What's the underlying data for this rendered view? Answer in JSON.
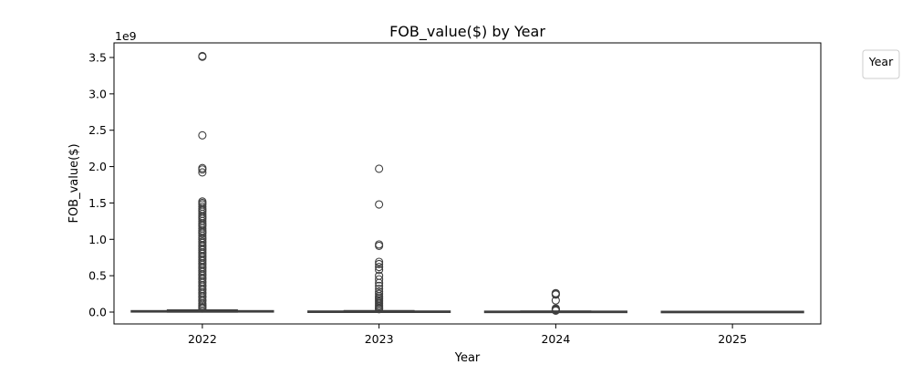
{
  "chart_data": {
    "type": "box",
    "title": "FOB_value($) by Year",
    "xlabel": "Year",
    "ylabel": "FOB_value($)",
    "y_offset_label": "1e9",
    "y_scale": 1000000000,
    "categories": [
      "2022",
      "2023",
      "2024",
      "2025"
    ],
    "ylim": [
      -0.18,
      3.7
    ],
    "yticks": [
      0.0,
      0.5,
      1.0,
      1.5,
      2.0,
      2.5,
      3.0,
      3.5
    ],
    "ytick_labels": [
      "0.0",
      "0.5",
      "1.0",
      "1.5",
      "2.0",
      "2.5",
      "3.0",
      "3.5"
    ],
    "legend": {
      "title": "Year",
      "placement": "outside-top-right"
    },
    "grid": false,
    "boxes": [
      {
        "category": "2022",
        "box": {
          "q1": 0.0,
          "median": 0.005,
          "q3": 0.015,
          "whisker_low": 0.0,
          "whisker_high": 0.03
        },
        "outliers": [
          3.52,
          3.51,
          2.43,
          1.98,
          1.96,
          1.92,
          1.52,
          1.5,
          1.48,
          1.45,
          1.42,
          1.4,
          1.38,
          1.35,
          1.32,
          1.3,
          1.28,
          1.25,
          1.22,
          1.2,
          1.18,
          1.15,
          1.12,
          1.1,
          1.08,
          1.05,
          1.02,
          1.0,
          0.97,
          0.95,
          0.92,
          0.9,
          0.87,
          0.85,
          0.82,
          0.8,
          0.77,
          0.75,
          0.72,
          0.7,
          0.67,
          0.65,
          0.62,
          0.6,
          0.57,
          0.55,
          0.52,
          0.5,
          0.47,
          0.45,
          0.42,
          0.4,
          0.37,
          0.35,
          0.32,
          0.3,
          0.27,
          0.25,
          0.22,
          0.2,
          0.17,
          0.15,
          0.12,
          0.1,
          0.08,
          0.06,
          0.05
        ]
      },
      {
        "category": "2023",
        "box": {
          "q1": 0.0,
          "median": 0.003,
          "q3": 0.01,
          "whisker_low": 0.0,
          "whisker_high": 0.02
        },
        "outliers": [
          1.97,
          1.48,
          0.93,
          0.91,
          0.69,
          0.66,
          0.62,
          0.58,
          0.5,
          0.45,
          0.4,
          0.36,
          0.32,
          0.28,
          0.25,
          0.22,
          0.2,
          0.18,
          0.16,
          0.14,
          0.12,
          0.1,
          0.08,
          0.06,
          0.05,
          0.04
        ]
      },
      {
        "category": "2024",
        "box": {
          "q1": 0.0,
          "median": 0.002,
          "q3": 0.008,
          "whisker_low": 0.0,
          "whisker_high": 0.015
        },
        "outliers": [
          0.26,
          0.25,
          0.24,
          0.16,
          0.05,
          0.04,
          0.03,
          0.02
        ]
      },
      {
        "category": "2025",
        "box": {
          "q1": 0.0,
          "median": 0.001,
          "q3": 0.006,
          "whisker_low": 0.0,
          "whisker_high": 0.01
        },
        "outliers": []
      }
    ]
  },
  "colors": {
    "box_fill": "#ffffff",
    "box_edge": "#3f3f3f",
    "axis": "#000000",
    "legend_border": "#cccccc"
  }
}
